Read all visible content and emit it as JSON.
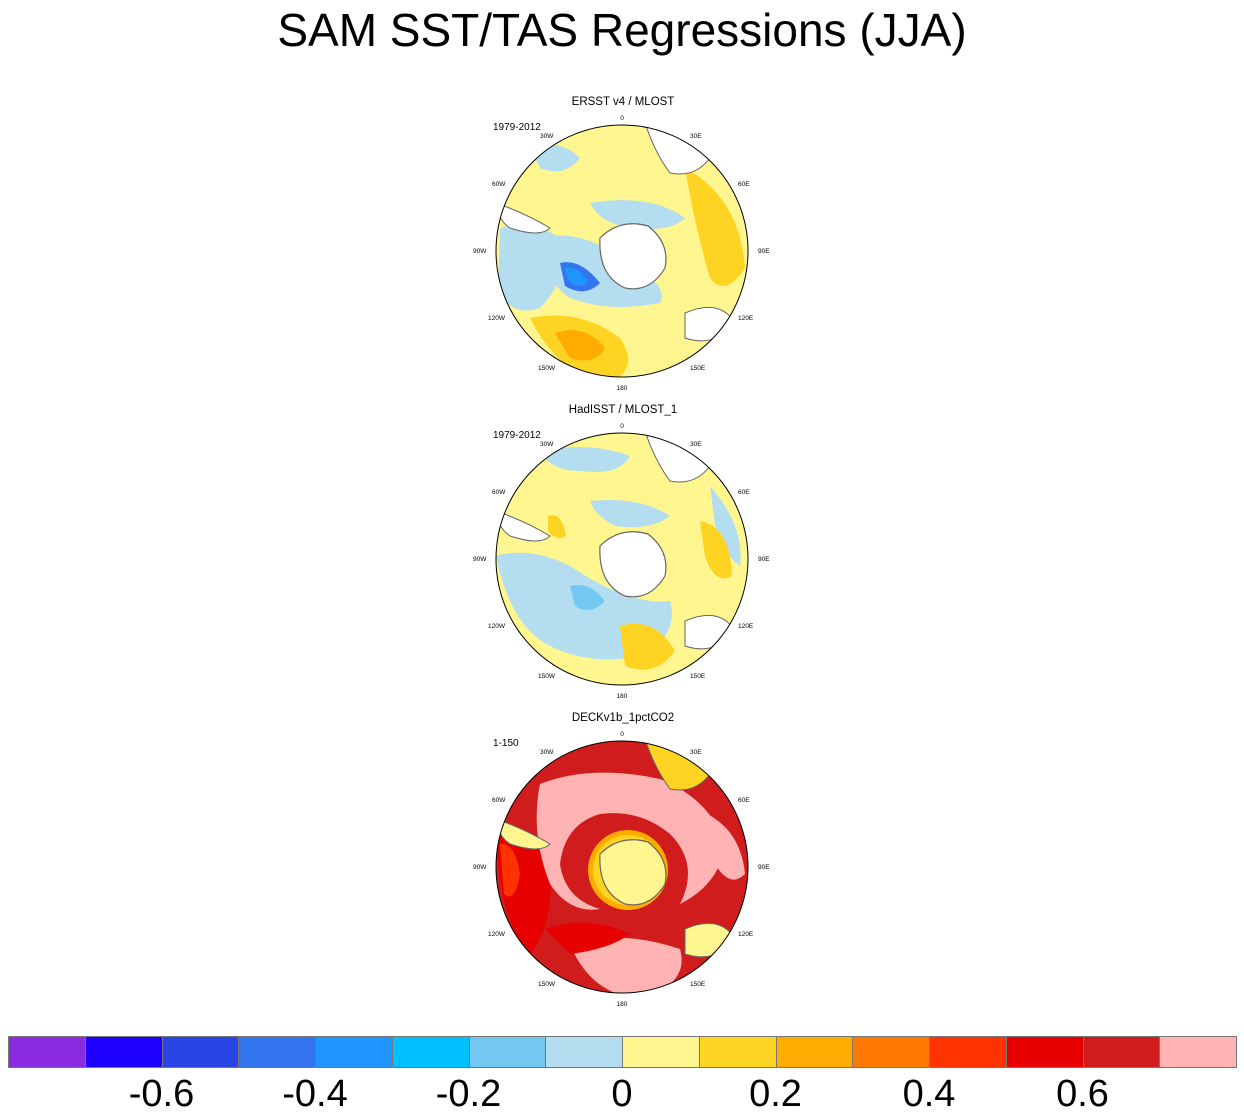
{
  "title": "SAM SST/TAS Regressions (JJA)",
  "panels": [
    {
      "title": "ERSST v4 / MLOST",
      "period": "1979-2012",
      "fill_primary": "#fff68f",
      "fill_secondary": "#b4def0",
      "accent": "#ffd321"
    },
    {
      "title": "HadISST / MLOST_1",
      "period": "1979-2012",
      "fill_primary": "#fff68f",
      "fill_secondary": "#b4def0",
      "accent": "#ffd321"
    },
    {
      "title": "DECKv1b_1pctCO2",
      "period": "1-150",
      "fill_primary": "#e60000",
      "fill_secondary": "#ffb3b3",
      "accent": "#d01c1c"
    }
  ],
  "longitude_labels": [
    "0",
    "30E",
    "60E",
    "90E",
    "120E",
    "150E",
    "180",
    "150W",
    "120W",
    "90W",
    "60W",
    "30W"
  ],
  "colorbar": {
    "colors": [
      "#8a2be2",
      "#1e00ff",
      "#2a45e6",
      "#3374ef",
      "#1f96ff",
      "#00c0ff",
      "#72c8f0",
      "#b4def0",
      "#fff68f",
      "#ffd321",
      "#ffab00",
      "#ff7800",
      "#ff3200",
      "#e60000",
      "#d01c1c",
      "#ffb3b3"
    ],
    "labels": [
      "-0.6",
      "-0.4",
      "-0.2",
      "0",
      "0.2",
      "0.4",
      "0.6"
    ],
    "label_box_indices": [
      2,
      4,
      6,
      8,
      10,
      12,
      14
    ]
  }
}
